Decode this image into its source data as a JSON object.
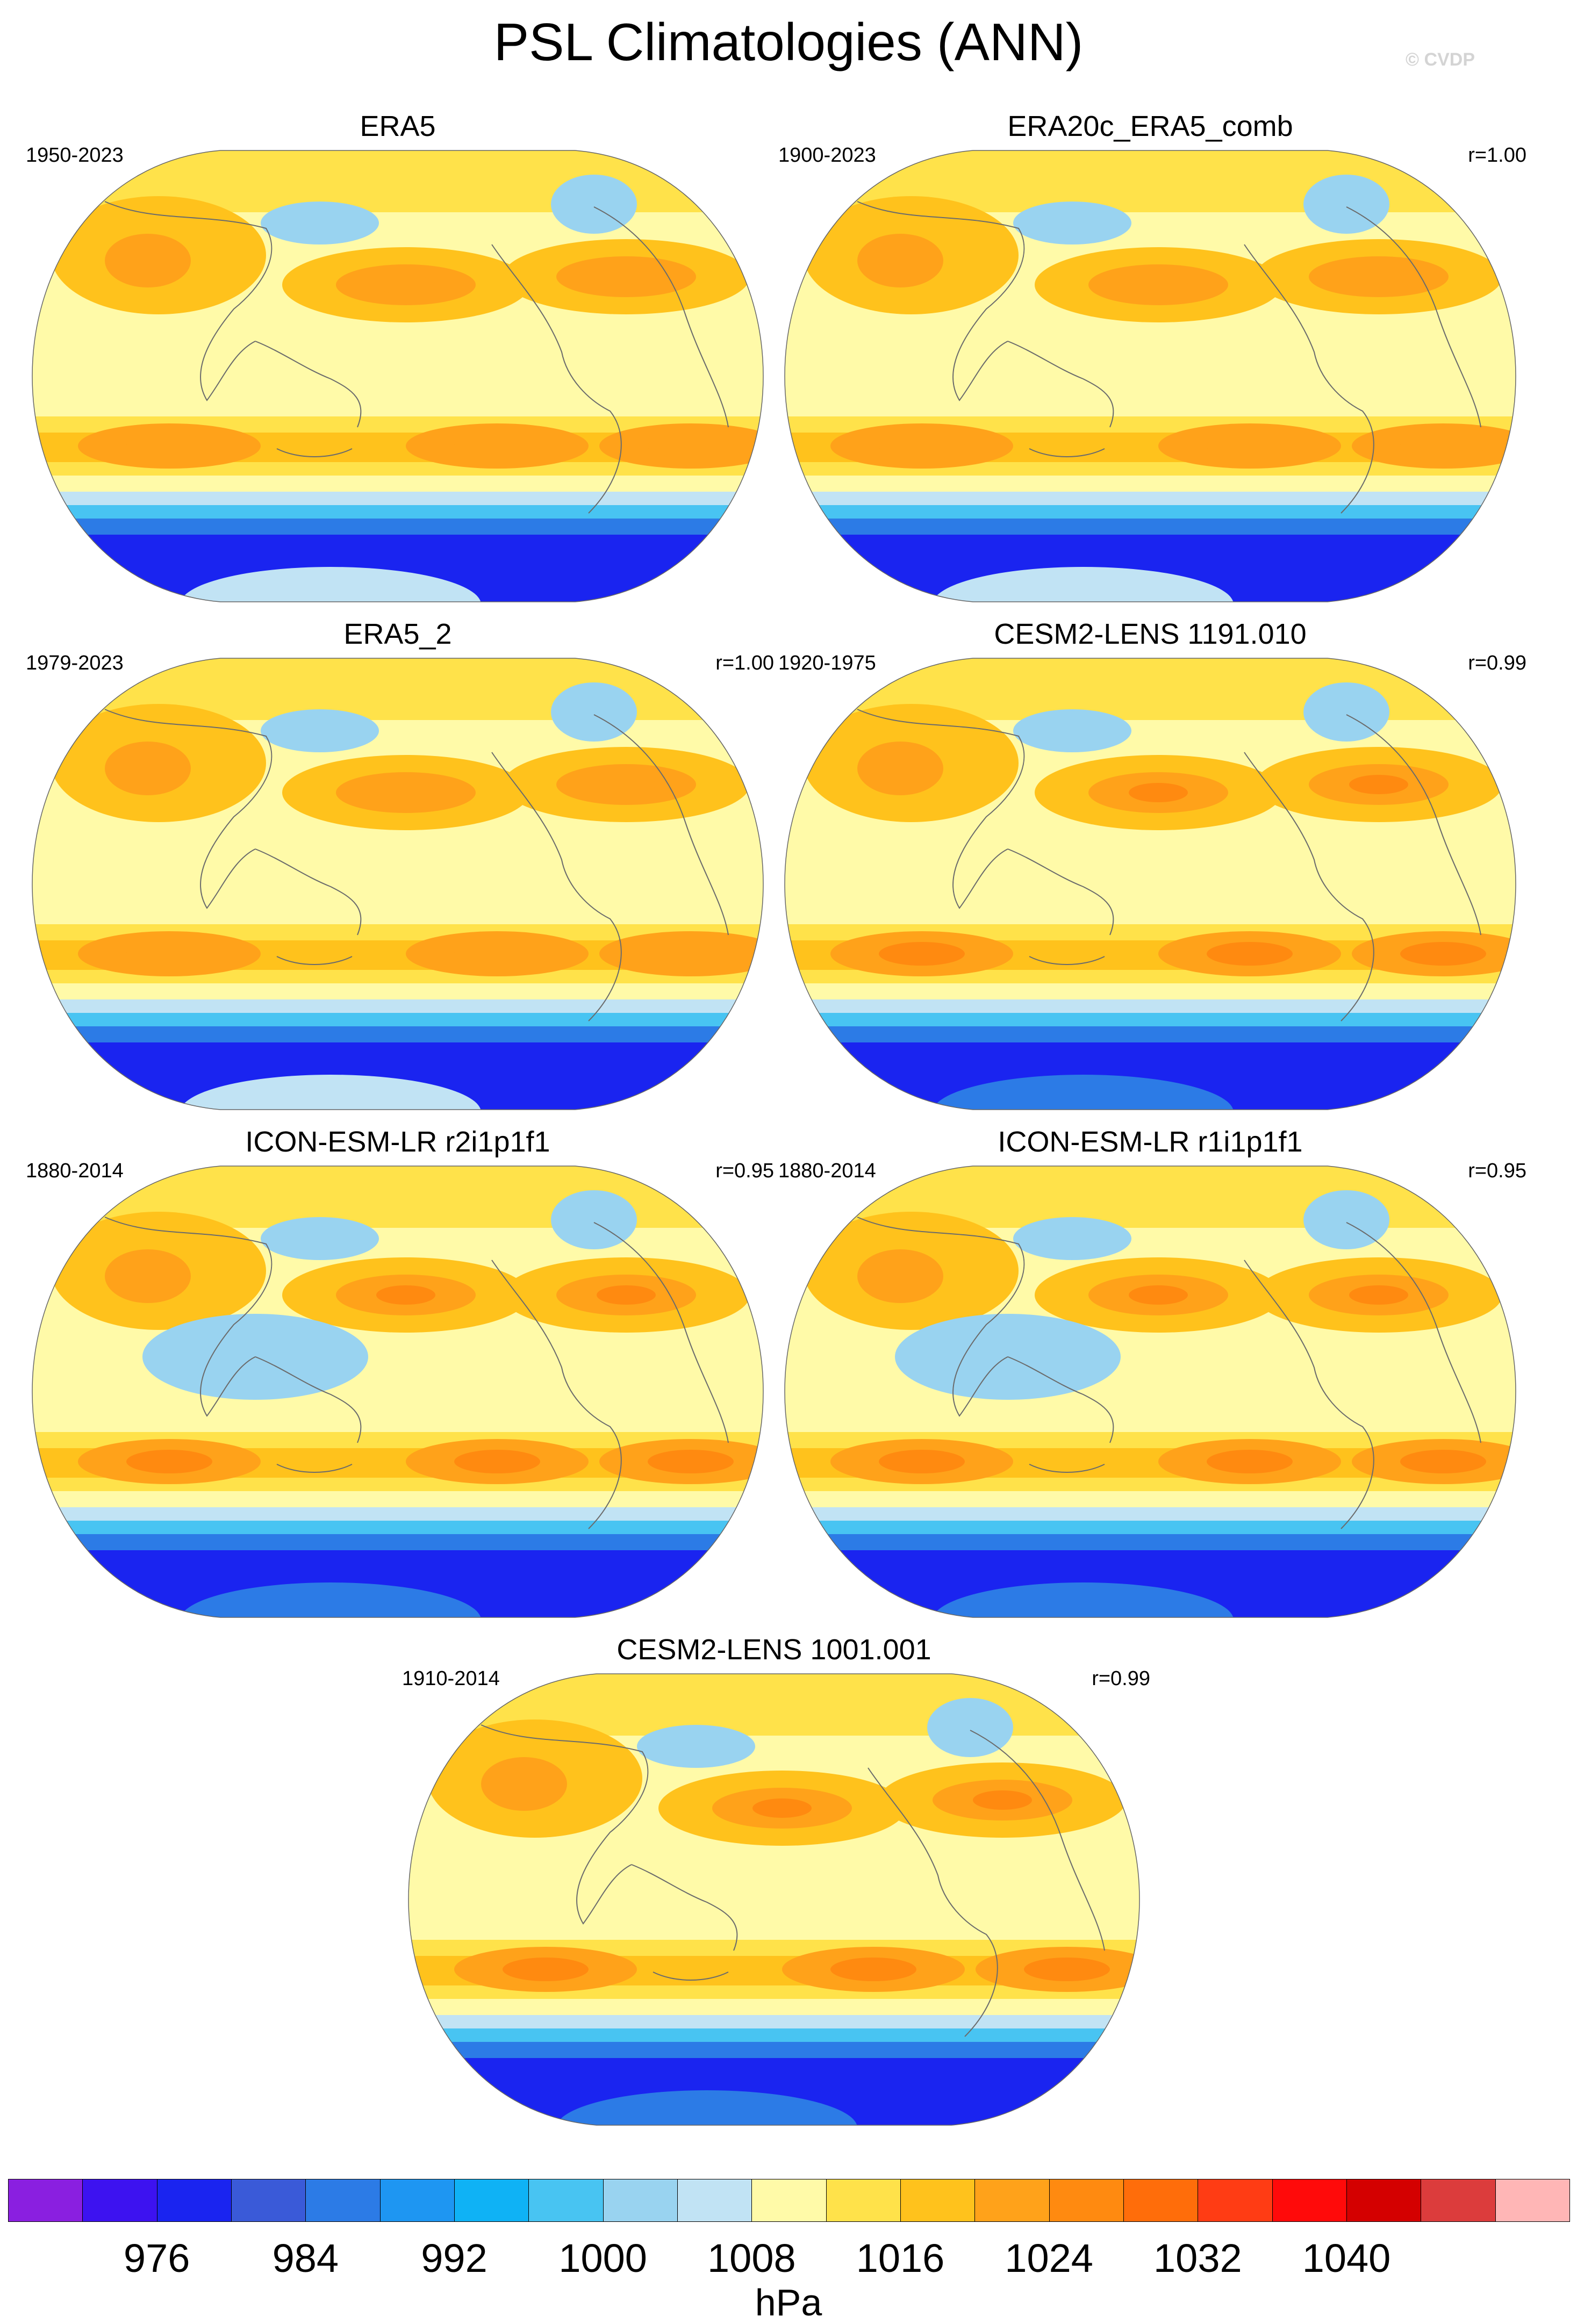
{
  "title": "PSL Climatologies (ANN)",
  "credit": "© CVDP",
  "panels": [
    {
      "title": "ERA5",
      "period": "1950-2023",
      "r": "",
      "model": "era5"
    },
    {
      "title": "ERA20c_ERA5_comb",
      "period": "1900-2023",
      "r": "r=1.00",
      "model": "era5"
    },
    {
      "title": "ERA5_2",
      "period": "1979-2023",
      "r": "r=1.00",
      "model": "era5"
    },
    {
      "title": "CESM2-LENS 1191.010",
      "period": "1920-1975",
      "r": "r=0.99",
      "model": "cesm"
    },
    {
      "title": "ICON-ESM-LR r2i1p1f1",
      "period": "1880-2014",
      "r": "r=0.95",
      "model": "icon"
    },
    {
      "title": "ICON-ESM-LR r1i1p1f1",
      "period": "1880-2014",
      "r": "r=0.95",
      "model": "icon"
    },
    {
      "title": "CESM2-LENS 1001.001",
      "period": "1910-2014",
      "r": "r=0.99",
      "model": "cesm"
    }
  ],
  "colorbar": {
    "unit": "hPa",
    "labels": [
      "976",
      "984",
      "992",
      "1000",
      "1008",
      "1016",
      "1024",
      "1032",
      "1040"
    ],
    "colors": [
      "#8a1fe0",
      "#3d12f0",
      "#1a24f0",
      "#3a5ad8",
      "#2c7be6",
      "#1e96f2",
      "#0fb2f5",
      "#48c4f2",
      "#99d3f0",
      "#c1e3f4",
      "#fffaa8",
      "#ffe24a",
      "#ffc21c",
      "#ffa21a",
      "#ff8a10",
      "#ff6d0a",
      "#ff3c14",
      "#ff0a0a",
      "#d40000",
      "#dc3c3c",
      "#ffb6b6"
    ]
  },
  "zone_colors": {
    "land_green": "#fffaa8",
    "land_line": "#6b6b6b",
    "ocean_base": "#fffaa8",
    "subtrop": "#ffe24a",
    "high": "#ffc21c",
    "higher": "#ffa21a",
    "highest": "#ff8a10",
    "low_light": "#c1e3f4",
    "low": "#99d3f0",
    "deep1": "#48c4f2",
    "deep2": "#2c7be6",
    "deep3": "#1a24f0"
  }
}
